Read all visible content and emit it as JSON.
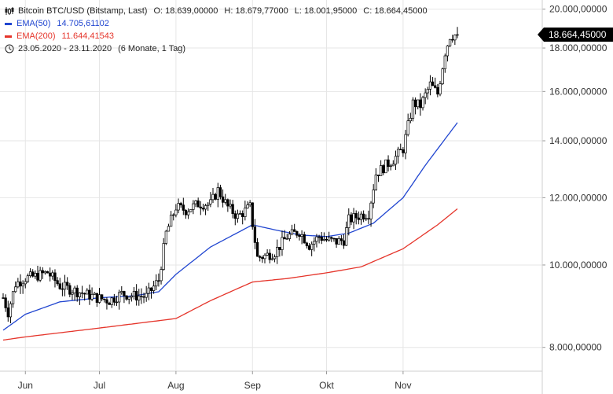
{
  "header": {
    "instrument": "Bitcoin BTC/USD (Bitstamp, Last)",
    "open": "O: 18.639,00000",
    "high": "H: 18.679,77000",
    "low": "L: 18.001,95000",
    "close": "C: 18.664,45000",
    "ema50_label": "EMA(50)",
    "ema50_value": "14.705,61102",
    "ema200_label": "EMA(200)",
    "ema200_value": "11.644,41543",
    "range_text": "23.05.2020 - 23.11.2020",
    "period_text": "(6 Monate, 1 Tag)"
  },
  "price_badge": "18.664,45000",
  "colors": {
    "ema50": "#2146d0",
    "ema200": "#e5352b",
    "candle": "#000000",
    "badge_bg": "#000000",
    "badge_text": "#ffffff",
    "grid": "#e6e6e6",
    "axis_text": "#333333"
  },
  "chart_data": {
    "type": "candlestick",
    "y_scale": "log",
    "ylim": [
      7500,
      20500
    ],
    "y_ticks": [
      {
        "value": 8000,
        "label": "8.000,00000"
      },
      {
        "value": 10000,
        "label": "10.000,00000"
      },
      {
        "value": 12000,
        "label": "12.000,00000"
      },
      {
        "value": 14000,
        "label": "14.000,00000"
      },
      {
        "value": 16000,
        "label": "16.000,00000"
      },
      {
        "value": 18000,
        "label": "18.000,00000"
      },
      {
        "value": 20000,
        "label": "20.000,00000"
      }
    ],
    "x_ticks": [
      {
        "label": "Jun",
        "date": "2020-06-01"
      },
      {
        "label": "Jul",
        "date": "2020-07-01"
      },
      {
        "label": "Aug",
        "date": "2020-08-01"
      },
      {
        "label": "Sep",
        "date": "2020-09-01"
      },
      {
        "label": "Okt",
        "date": "2020-10-01"
      },
      {
        "label": "Nov",
        "date": "2020-11-01"
      }
    ],
    "x_range": [
      "2020-05-23",
      "2020-11-23"
    ],
    "close_path": [
      [
        "2020-05-23",
        9150
      ],
      [
        "2020-05-25",
        8800
      ],
      [
        "2020-05-28",
        9500
      ],
      [
        "2020-06-01",
        9650
      ],
      [
        "2020-06-05",
        9700
      ],
      [
        "2020-06-10",
        9800
      ],
      [
        "2020-06-15",
        9450
      ],
      [
        "2020-06-20",
        9350
      ],
      [
        "2020-06-25",
        9250
      ],
      [
        "2020-06-30",
        9150
      ],
      [
        "2020-07-05",
        9080
      ],
      [
        "2020-07-10",
        9250
      ],
      [
        "2020-07-15",
        9200
      ],
      [
        "2020-07-20",
        9180
      ],
      [
        "2020-07-25",
        9600
      ],
      [
        "2020-07-28",
        10900
      ],
      [
        "2020-08-01",
        11700
      ],
      [
        "2020-08-05",
        11600
      ],
      [
        "2020-08-10",
        11800
      ],
      [
        "2020-08-15",
        11800
      ],
      [
        "2020-08-18",
        12250
      ],
      [
        "2020-08-22",
        11700
      ],
      [
        "2020-08-26",
        11400
      ],
      [
        "2020-08-31",
        11700
      ],
      [
        "2020-09-03",
        10200
      ],
      [
        "2020-09-06",
        10250
      ],
      [
        "2020-09-10",
        10350
      ],
      [
        "2020-09-15",
        10800
      ],
      [
        "2020-09-20",
        10950
      ],
      [
        "2020-09-24",
        10550
      ],
      [
        "2020-09-28",
        10800
      ],
      [
        "2020-10-01",
        10700
      ],
      [
        "2020-10-05",
        10650
      ],
      [
        "2020-10-08",
        10700
      ],
      [
        "2020-10-10",
        11300
      ],
      [
        "2020-10-15",
        11450
      ],
      [
        "2020-10-18",
        11500
      ],
      [
        "2020-10-21",
        12800
      ],
      [
        "2020-10-25",
        13100
      ],
      [
        "2020-10-28",
        13300
      ],
      [
        "2020-11-01",
        13700
      ],
      [
        "2020-11-05",
        15500
      ],
      [
        "2020-11-08",
        15400
      ],
      [
        "2020-11-12",
        16300
      ],
      [
        "2020-11-15",
        15900
      ],
      [
        "2020-11-18",
        17800
      ],
      [
        "2020-11-20",
        18600
      ],
      [
        "2020-11-23",
        18664.45
      ]
    ],
    "ema50_path": [
      [
        "2020-05-23",
        8380
      ],
      [
        "2020-06-01",
        8750
      ],
      [
        "2020-06-15",
        9050
      ],
      [
        "2020-07-01",
        9150
      ],
      [
        "2020-07-15",
        9200
      ],
      [
        "2020-07-25",
        9300
      ],
      [
        "2020-08-01",
        9750
      ],
      [
        "2020-08-15",
        10500
      ],
      [
        "2020-09-01",
        11150
      ],
      [
        "2020-09-10",
        11000
      ],
      [
        "2020-09-20",
        10850
      ],
      [
        "2020-10-01",
        10800
      ],
      [
        "2020-10-10",
        10900
      ],
      [
        "2020-10-20",
        11200
      ],
      [
        "2020-11-01",
        12000
      ],
      [
        "2020-11-10",
        13100
      ],
      [
        "2020-11-23",
        14705.61
      ]
    ],
    "ema200_path": [
      [
        "2020-05-23",
        8160
      ],
      [
        "2020-06-01",
        8230
      ],
      [
        "2020-07-01",
        8430
      ],
      [
        "2020-08-01",
        8650
      ],
      [
        "2020-08-15",
        9080
      ],
      [
        "2020-09-01",
        9550
      ],
      [
        "2020-09-15",
        9640
      ],
      [
        "2020-10-01",
        9790
      ],
      [
        "2020-10-15",
        9950
      ],
      [
        "2020-11-01",
        10450
      ],
      [
        "2020-11-15",
        11150
      ],
      [
        "2020-11-23",
        11644.42
      ]
    ]
  }
}
